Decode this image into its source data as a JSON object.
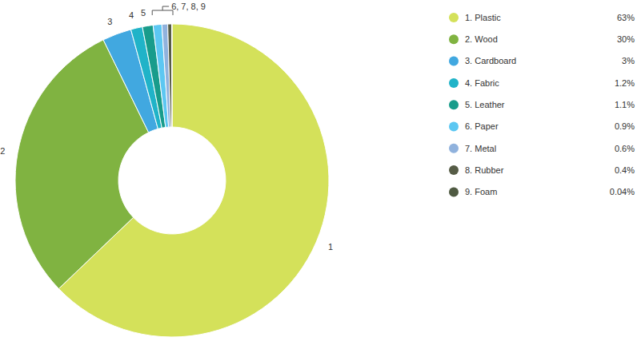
{
  "chart_data": {
    "type": "donut",
    "categories": [
      "1. Plastic",
      "2. Wood",
      "3. Cardboard",
      "4. Fabric",
      "5. Leather",
      "6. Paper",
      "7. Metal",
      "8. Rubber",
      "9. Foam"
    ],
    "values": [
      63,
      30,
      3,
      1.2,
      1.1,
      0.9,
      0.6,
      0.4,
      0.04
    ],
    "value_labels": [
      "63%",
      "30%",
      "3%",
      "1.2%",
      "1.1%",
      "0.9%",
      "0.6%",
      "0.4%",
      "0.04%"
    ],
    "colors": [
      "#d4e15a",
      "#80b341",
      "#41a8e0",
      "#20b3c8",
      "#189c8b",
      "#5cc7f2",
      "#90b2dd",
      "#565c46",
      "#4f5a42"
    ],
    "annotations": [
      "1",
      "2",
      "3",
      "4",
      "5",
      "6, 7, 8, 9"
    ],
    "legend": "right"
  }
}
